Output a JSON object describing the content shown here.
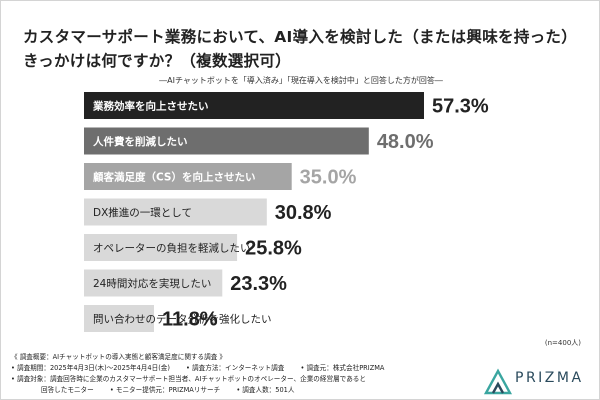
{
  "title_line1": "カスタマーサポート業務において、AI導入を検討した（または興味を持った）",
  "title_line2": "きっかけは何ですか？（複数選択可）",
  "subtitle": "―AIチャットボットを「導入済み」「現在導入を検討中」と回答した方が回答―",
  "chart_data": {
    "type": "bar",
    "orientation": "horizontal",
    "categories": [
      "業務効率を向上させたい",
      "人件費を削減したい",
      "顧客満足度（CS）を向上させたい",
      "DX推進の一環として",
      "オペレーターの負担を軽減したい",
      "24時間対応を実現したい",
      "問い合わせのデータ分析を強化したい"
    ],
    "values": [
      57.3,
      48.0,
      35.0,
      30.8,
      25.8,
      23.3,
      11.8
    ],
    "value_labels": [
      "57.3%",
      "48.0%",
      "35.0%",
      "30.8%",
      "25.8%",
      "23.3%",
      "11.8%"
    ],
    "xlim": [
      0,
      57.3
    ],
    "colors": [
      "#222222",
      "#6e6e6e",
      "#a5a5a5",
      "#d9d9d9",
      "#d9d9d9",
      "#d9d9d9",
      "#d9d9d9"
    ],
    "label_colors": [
      "#ffffff",
      "#ffffff",
      "#ffffff",
      "#222222",
      "#222222",
      "#222222",
      "#222222"
    ],
    "value_colors": [
      "#222222",
      "#6e6e6e",
      "#a5a5a5",
      "#222222",
      "#222222",
      "#222222",
      "#222222"
    ]
  },
  "sample_note": "(n=400人)",
  "footer": {
    "overview": "《 調査概要：AIチャットボットの導入実態と顧客満足度に関する調査 》",
    "period": "• 調査期間：2025年4月3日(木)〜2025年4月4日(金)",
    "method": "• 調査方法：インターネット調査",
    "organizer": "• 調査元：株式会社PRIZMA",
    "target": "• 調査対象：調査回答時に企業のカスタマーサポート担当者、AIチャットボットのオペレーター、企業の経営層であると",
    "target_cont": "回答したモニター",
    "provider": "• モニター提供元：PRIZMAリサーチ",
    "respondents": "• 調査人数：501人"
  },
  "logo_text": "PRIZMA",
  "logo_colors": [
    "#3aa6a0",
    "#2a4a5c"
  ]
}
